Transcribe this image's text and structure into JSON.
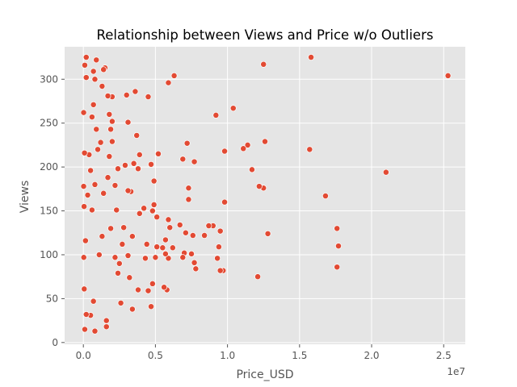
{
  "chart_data": {
    "type": "scatter",
    "title": "Relationship between Views and Price w/o Outliers",
    "xlabel": "Price_USD",
    "ylabel": "Views",
    "x_scale_label": "1e7",
    "xlim": [
      -1300000,
      26500000
    ],
    "ylim": [
      -2,
      337
    ],
    "x_ticks": [
      0,
      5000000,
      10000000,
      15000000,
      20000000,
      25000000
    ],
    "x_tick_labels": [
      "0.0",
      "0.5",
      "1.0",
      "1.5",
      "2.0",
      "2.5"
    ],
    "y_ticks": [
      0,
      50,
      100,
      150,
      200,
      250,
      300
    ],
    "y_tick_labels": [
      "0",
      "50",
      "100",
      "150",
      "200",
      "250",
      "300"
    ],
    "grid": true,
    "style": "ggplot",
    "colors": {
      "background": "#E5E5E5",
      "grid": "#FFFFFF",
      "point": "#E24A33",
      "point_edge": "#FFFFFF"
    },
    "series": [
      {
        "points": [
          [
            25300000,
            304
          ],
          [
            21000000,
            194
          ],
          [
            17700000,
            110
          ],
          [
            17600000,
            130
          ],
          [
            17600000,
            86
          ],
          [
            16800000,
            167
          ],
          [
            15800000,
            325
          ],
          [
            15700000,
            220
          ],
          [
            12800000,
            124
          ],
          [
            12600000,
            229
          ],
          [
            12500000,
            317
          ],
          [
            12500000,
            176
          ],
          [
            12200000,
            178
          ],
          [
            12100000,
            75
          ],
          [
            11700000,
            197
          ],
          [
            11400000,
            225
          ],
          [
            11100000,
            221
          ],
          [
            10400000,
            267
          ],
          [
            9800000,
            218
          ],
          [
            9800000,
            160
          ],
          [
            9700000,
            82
          ],
          [
            9500000,
            82
          ],
          [
            9500000,
            127
          ],
          [
            9400000,
            109
          ],
          [
            9300000,
            96
          ],
          [
            9200000,
            259
          ],
          [
            9000000,
            133
          ],
          [
            8700000,
            133
          ],
          [
            8400000,
            122
          ],
          [
            7800000,
            84
          ],
          [
            7700000,
            91
          ],
          [
            7700000,
            206
          ],
          [
            7600000,
            122
          ],
          [
            7500000,
            101
          ],
          [
            7300000,
            176
          ],
          [
            7300000,
            163
          ],
          [
            7200000,
            227
          ],
          [
            7100000,
            125
          ],
          [
            7000000,
            102
          ],
          [
            6900000,
            97
          ],
          [
            6900000,
            209
          ],
          [
            6700000,
            134
          ],
          [
            6300000,
            304
          ],
          [
            6200000,
            108
          ],
          [
            6000000,
            131
          ],
          [
            5900000,
            96
          ],
          [
            5900000,
            296
          ],
          [
            5900000,
            140
          ],
          [
            5800000,
            60
          ],
          [
            5700000,
            101
          ],
          [
            5700000,
            117
          ],
          [
            5600000,
            63
          ],
          [
            5500000,
            108
          ],
          [
            5200000,
            215
          ],
          [
            5100000,
            143
          ],
          [
            5100000,
            109
          ],
          [
            5000000,
            97
          ],
          [
            4900000,
            157
          ],
          [
            4900000,
            184
          ],
          [
            4800000,
            150
          ],
          [
            4800000,
            67
          ],
          [
            4700000,
            41
          ],
          [
            4700000,
            203
          ],
          [
            4500000,
            59
          ],
          [
            4500000,
            280
          ],
          [
            4400000,
            112
          ],
          [
            4300000,
            96
          ],
          [
            4200000,
            153
          ],
          [
            3900000,
            147
          ],
          [
            3900000,
            214
          ],
          [
            3800000,
            198
          ],
          [
            3800000,
            60
          ],
          [
            3700000,
            236
          ],
          [
            3600000,
            286
          ],
          [
            3500000,
            204
          ],
          [
            3400000,
            38
          ],
          [
            3400000,
            121
          ],
          [
            3300000,
            172
          ],
          [
            3200000,
            74
          ],
          [
            3100000,
            173
          ],
          [
            3100000,
            251
          ],
          [
            3100000,
            99
          ],
          [
            3000000,
            282
          ],
          [
            2900000,
            202
          ],
          [
            2800000,
            131
          ],
          [
            2700000,
            112
          ],
          [
            2600000,
            45
          ],
          [
            2500000,
            90
          ],
          [
            2400000,
            198
          ],
          [
            2400000,
            79
          ],
          [
            2300000,
            151
          ],
          [
            2200000,
            179
          ],
          [
            2200000,
            97
          ],
          [
            2000000,
            229
          ],
          [
            2000000,
            280
          ],
          [
            2000000,
            252
          ],
          [
            1900000,
            243
          ],
          [
            1900000,
            130
          ],
          [
            1800000,
            212
          ],
          [
            1800000,
            260
          ],
          [
            1700000,
            281
          ],
          [
            1700000,
            188
          ],
          [
            1600000,
            25
          ],
          [
            1600000,
            18
          ],
          [
            1500000,
            313
          ],
          [
            1400000,
            311
          ],
          [
            1400000,
            170
          ],
          [
            1300000,
            292
          ],
          [
            1300000,
            121
          ],
          [
            1200000,
            228
          ],
          [
            1100000,
            100
          ],
          [
            1000000,
            220
          ],
          [
            900000,
            322
          ],
          [
            900000,
            243
          ],
          [
            800000,
            300
          ],
          [
            800000,
            13
          ],
          [
            800000,
            180
          ],
          [
            700000,
            309
          ],
          [
            700000,
            271
          ],
          [
            700000,
            47
          ],
          [
            600000,
            257
          ],
          [
            600000,
            151
          ],
          [
            500000,
            31
          ],
          [
            500000,
            196
          ],
          [
            400000,
            214
          ],
          [
            300000,
            168
          ],
          [
            200000,
            325
          ],
          [
            200000,
            302
          ],
          [
            200000,
            32
          ],
          [
            150000,
            116
          ],
          [
            100000,
            316
          ],
          [
            100000,
            15
          ],
          [
            80000,
            216
          ],
          [
            60000,
            61
          ],
          [
            50000,
            155
          ],
          [
            30000,
            97
          ],
          [
            20000,
            262
          ],
          [
            20000,
            178
          ]
        ]
      }
    ]
  }
}
